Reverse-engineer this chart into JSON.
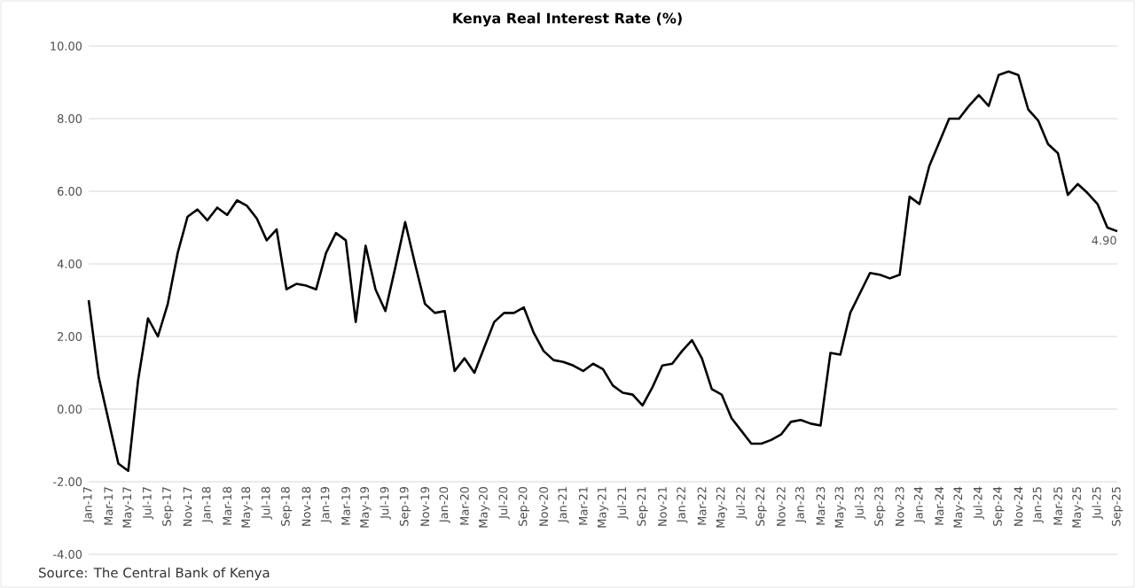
{
  "chart_data": {
    "type": "line",
    "title": "Kenya Real Interest Rate (%)",
    "categories": [
      "Jan-17",
      null,
      "Mar-17",
      null,
      "May-17",
      null,
      "Jul-17",
      null,
      "Sep-17",
      null,
      "Nov-17",
      null,
      "Jan-18",
      null,
      "Mar-18",
      null,
      "May-18",
      null,
      "Jul-18",
      null,
      "Sep-18",
      null,
      "Nov-18",
      null,
      "Jan-19",
      null,
      "Mar-19",
      null,
      "May-19",
      null,
      "Jul-19",
      null,
      "Sep-19",
      null,
      "Nov-19",
      null,
      "Jan-20",
      null,
      "Mar-20",
      null,
      "May-20",
      null,
      "Jul-20",
      null,
      "Sep-20",
      null,
      "Nov-20",
      null,
      "Jan-21",
      null,
      "Mar-21",
      null,
      "May-21",
      null,
      "Jul-21",
      null,
      "Sep-21",
      null,
      "Nov-21",
      null,
      "Jan-22",
      null,
      "Mar-22",
      null,
      "May-22",
      null,
      "Jul-22",
      null,
      "Sep-22",
      null,
      "Nov-22",
      null,
      "Jan-23",
      null,
      "Mar-23",
      null,
      "May-23",
      null,
      "Jul-23",
      null,
      "Sep-23",
      null,
      "Nov-23",
      null,
      "Jan-24",
      null,
      "Mar-24",
      null,
      "May-24",
      null,
      "Jul-24",
      null,
      "Sep-24",
      null,
      "Nov-24",
      null,
      "Jan-25",
      null,
      "Mar-25",
      null,
      "May-25",
      null,
      "Jul-25",
      null,
      "Sep-25"
    ],
    "series": [
      {
        "color": "#000000",
        "values": [
          3.0,
          0.9,
          -0.3,
          -1.5,
          -1.7,
          0.8,
          2.5,
          2.0,
          2.9,
          4.3,
          5.3,
          5.5,
          5.2,
          5.55,
          5.35,
          5.75,
          5.6,
          5.25,
          4.65,
          4.95,
          3.3,
          3.45,
          3.4,
          3.3,
          4.3,
          4.85,
          4.65,
          2.4,
          4.5,
          3.3,
          2.7,
          3.9,
          5.15,
          4.0,
          2.9,
          2.65,
          2.7,
          1.05,
          1.4,
          1.0,
          1.7,
          2.4,
          2.65,
          2.65,
          2.8,
          2.1,
          1.6,
          1.35,
          1.3,
          1.2,
          1.05,
          1.25,
          1.1,
          0.65,
          0.45,
          0.4,
          0.1,
          0.6,
          1.2,
          1.25,
          1.6,
          1.9,
          1.4,
          0.55,
          0.4,
          -0.25,
          -0.6,
          -0.95,
          -0.95,
          -0.85,
          -0.7,
          -0.35,
          -0.3,
          -0.4,
          -0.45,
          1.55,
          1.5,
          2.65,
          3.2,
          3.75,
          3.7,
          3.6,
          3.7,
          5.85,
          5.65,
          6.7,
          7.35,
          8.0,
          8.0,
          8.35,
          8.65,
          8.35,
          9.2,
          9.3,
          9.2,
          8.25,
          7.95,
          7.3,
          7.05,
          5.9,
          6.2,
          5.95,
          5.65,
          5.0,
          4.9
        ],
        "value_labels": [
          null,
          null,
          null,
          null,
          null,
          null,
          null,
          null,
          null,
          null,
          null,
          null,
          null,
          null,
          null,
          null,
          null,
          null,
          null,
          null,
          null,
          null,
          null,
          null,
          null,
          null,
          null,
          null,
          null,
          null,
          null,
          null,
          null,
          null,
          null,
          null,
          null,
          null,
          null,
          null,
          null,
          null,
          null,
          null,
          null,
          null,
          null,
          null,
          null,
          null,
          null,
          null,
          null,
          null,
          null,
          null,
          null,
          null,
          null,
          null,
          null,
          null,
          null,
          null,
          null,
          null,
          null,
          null,
          null,
          null,
          null,
          null,
          null,
          null,
          null,
          null,
          null,
          null,
          null,
          null,
          null,
          null,
          null,
          null,
          null,
          null,
          null,
          null,
          null,
          null,
          null,
          null,
          null,
          null,
          null,
          null,
          null,
          null,
          null,
          null,
          null,
          null,
          null,
          null,
          "4.90"
        ]
      }
    ],
    "ylim": [
      -4,
      10
    ],
    "yticks": [
      {
        "value": -4,
        "label": "-4.00"
      },
      {
        "value": -2,
        "label": "-2.00"
      },
      {
        "value": 0,
        "label": "0.00"
      },
      {
        "value": 2,
        "label": "2.00"
      },
      {
        "value": 4,
        "label": "4.00"
      },
      {
        "value": 6,
        "label": "6.00"
      },
      {
        "value": 8,
        "label": "8.00"
      },
      {
        "value": 10,
        "label": "10.00"
      }
    ],
    "grid": "y",
    "marker": "none",
    "line_style": "solid",
    "annotations": [
      "Source: The Central Bank of Kenya"
    ]
  }
}
